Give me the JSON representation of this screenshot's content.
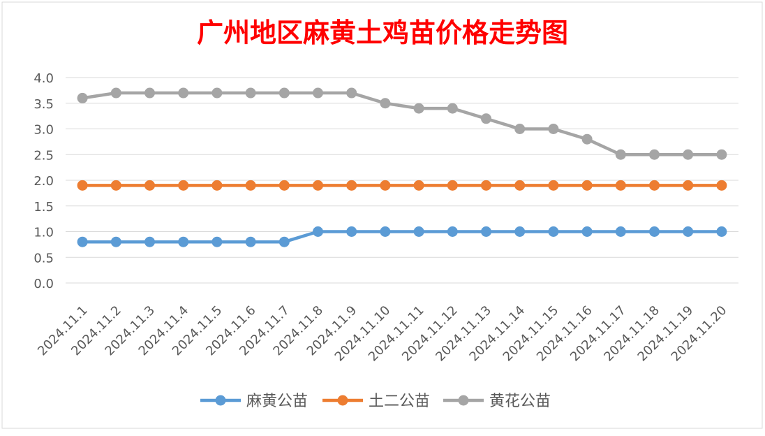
{
  "chart_data": {
    "type": "line",
    "title": "广州地区麻黄土鸡苗价格走势图",
    "xlabel": "",
    "ylabel": "",
    "ylim": [
      0,
      4
    ],
    "yticks": [
      "0.0",
      "0.5",
      "1.0",
      "1.5",
      "2.0",
      "2.5",
      "3.0",
      "3.5",
      "4.0"
    ],
    "grid": true,
    "legend": "bottom",
    "categories": [
      "2024.11.1",
      "2024.11.2",
      "2024.11.3",
      "2024.11.4",
      "2024.11.5",
      "2024.11.6",
      "2024.11.7",
      "2024.11.8",
      "2024.11.9",
      "2024.11.10",
      "2024.11.11",
      "2024.11.12",
      "2024.11.13",
      "2024.11.14",
      "2024.11.15",
      "2024.11.16",
      "2024.11.17",
      "2024.11.18",
      "2024.11.19",
      "2024.11.20"
    ],
    "series": [
      {
        "name": "麻黄公苗",
        "color": "#5B9BD5",
        "values": [
          0.8,
          0.8,
          0.8,
          0.8,
          0.8,
          0.8,
          0.8,
          1.0,
          1.0,
          1.0,
          1.0,
          1.0,
          1.0,
          1.0,
          1.0,
          1.0,
          1.0,
          1.0,
          1.0,
          1.0
        ]
      },
      {
        "name": "土二公苗",
        "color": "#ED7D31",
        "values": [
          1.9,
          1.9,
          1.9,
          1.9,
          1.9,
          1.9,
          1.9,
          1.9,
          1.9,
          1.9,
          1.9,
          1.9,
          1.9,
          1.9,
          1.9,
          1.9,
          1.9,
          1.9,
          1.9,
          1.9
        ]
      },
      {
        "name": "黄花公苗",
        "color": "#A5A5A5",
        "values": [
          3.6,
          3.7,
          3.7,
          3.7,
          3.7,
          3.7,
          3.7,
          3.7,
          3.7,
          3.5,
          3.4,
          3.4,
          3.2,
          3.0,
          3.0,
          2.8,
          2.5,
          2.5,
          2.5,
          2.5
        ]
      }
    ],
    "title_color": "#FF0000"
  }
}
